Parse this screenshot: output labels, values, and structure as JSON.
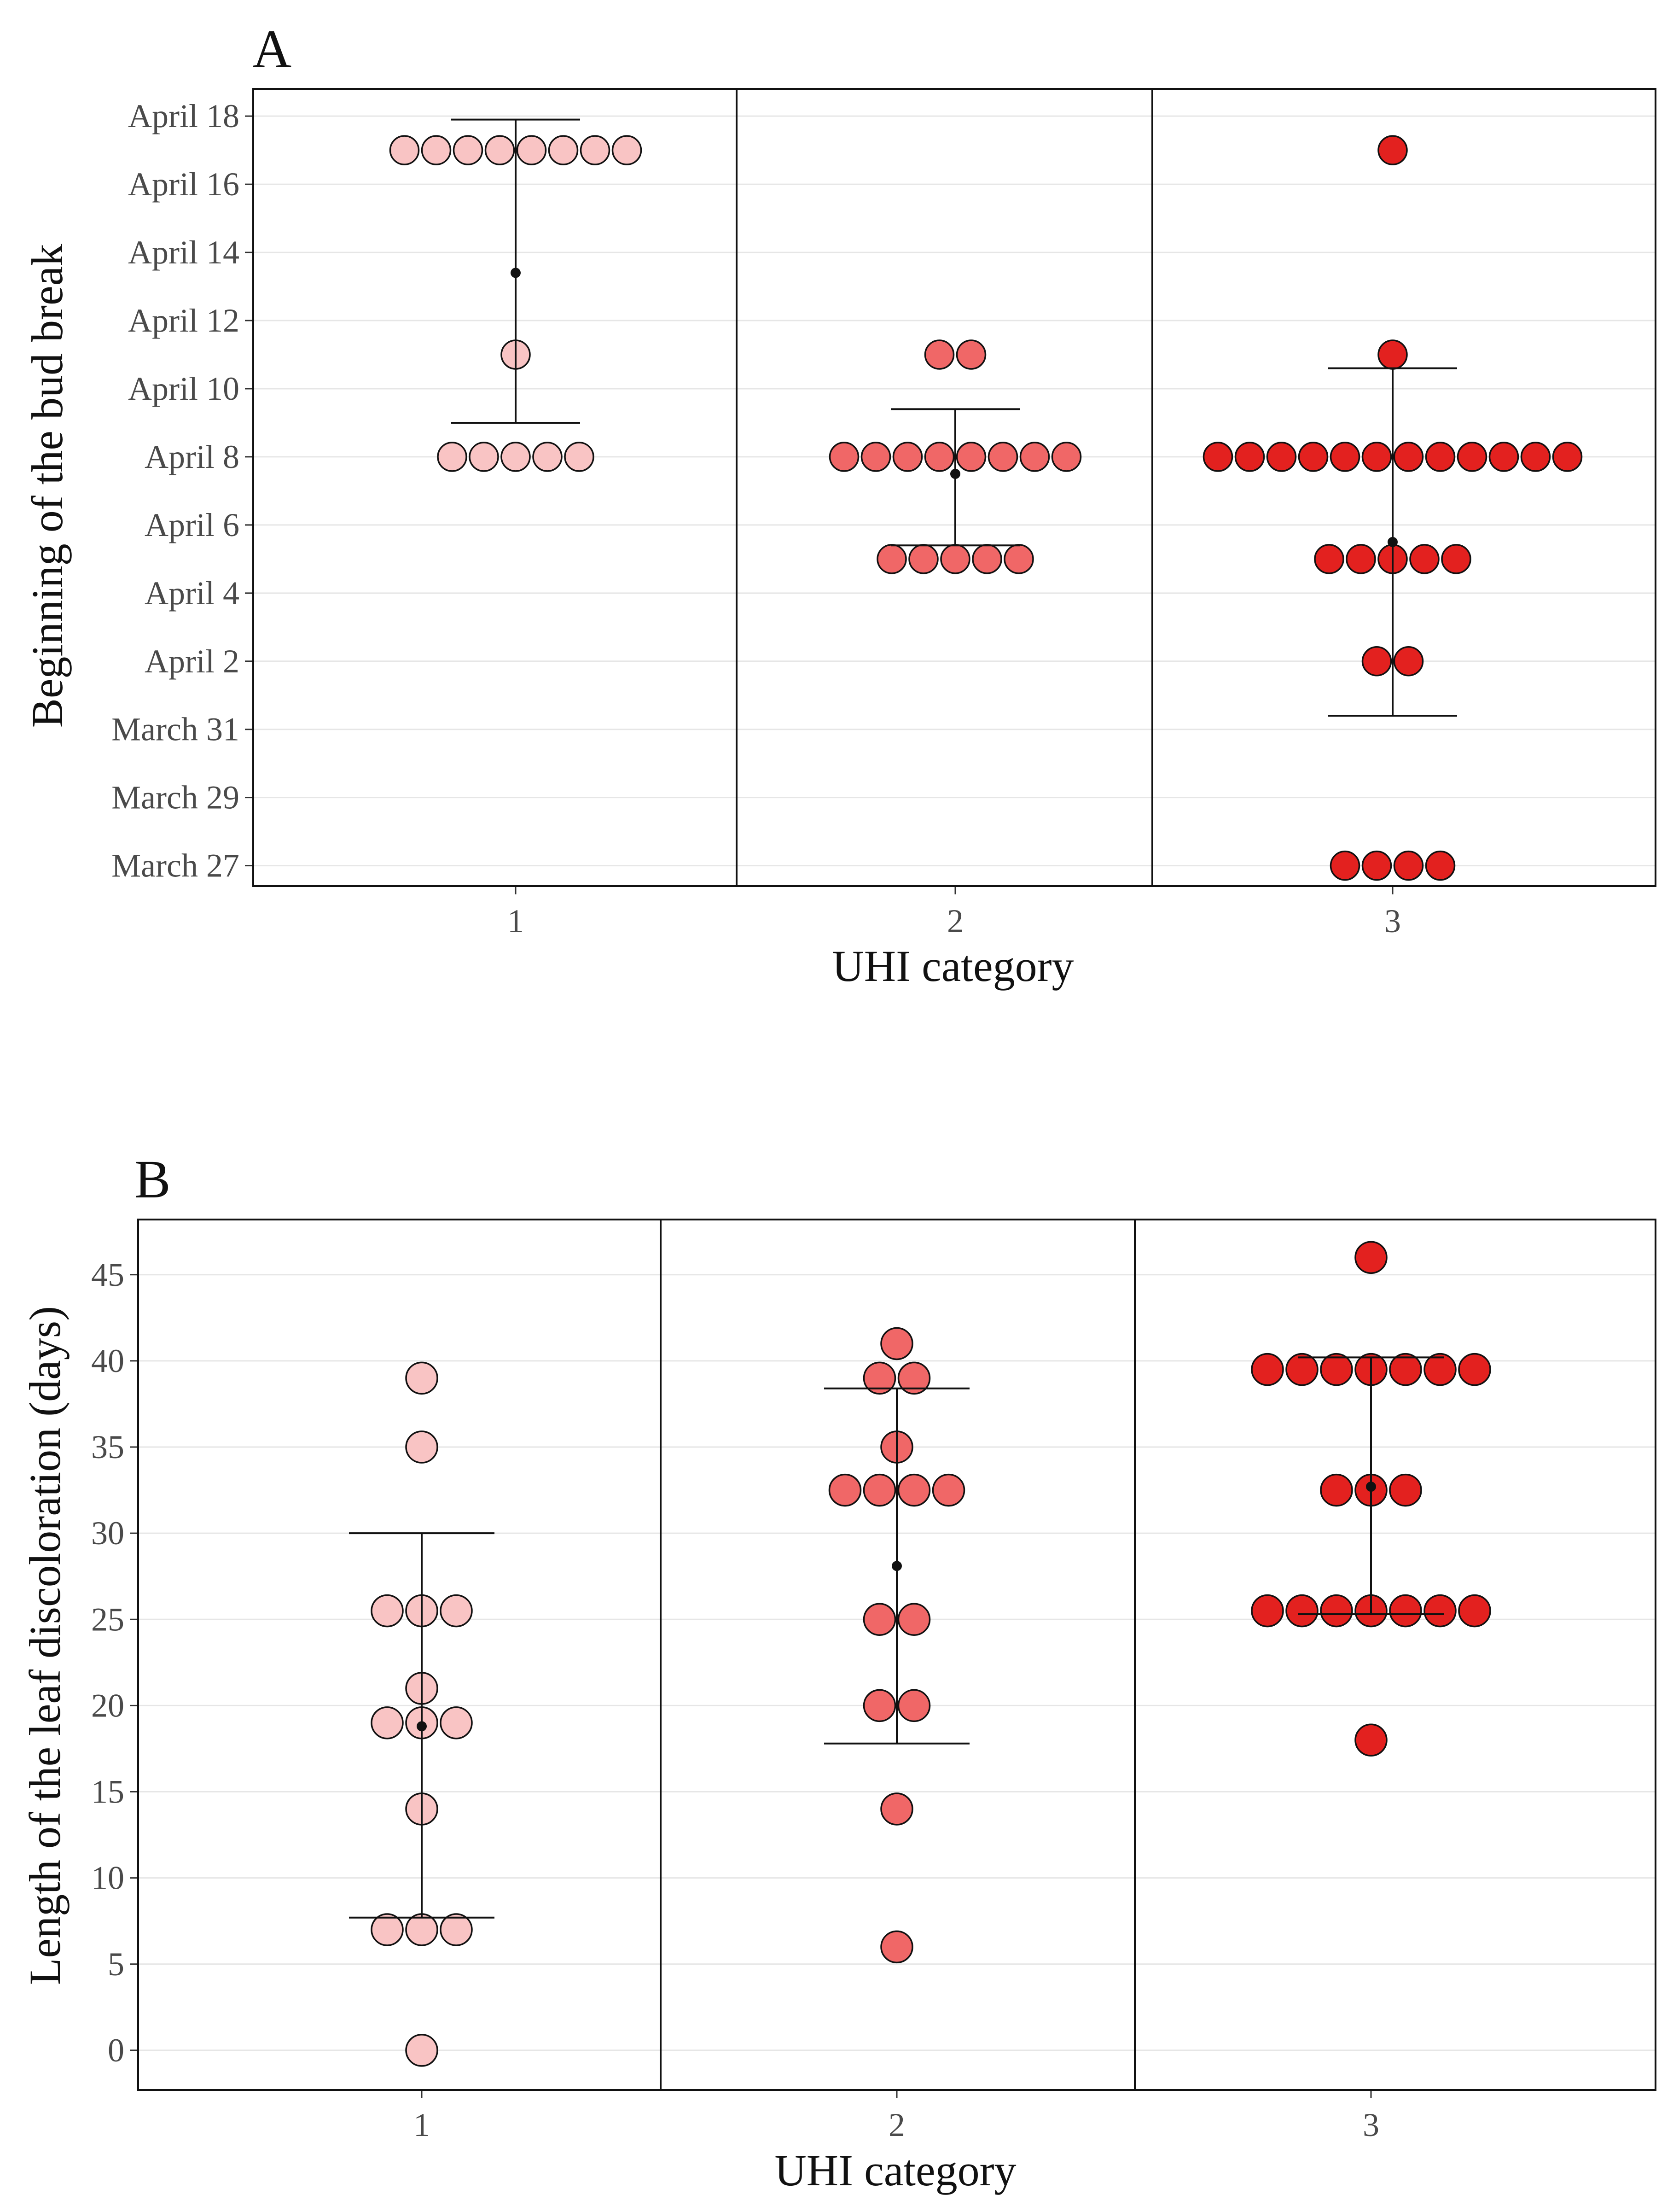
{
  "chart_data": [
    {
      "type": "scatter",
      "subtype": "dotplot_with_mean_sd",
      "panel_label": "A",
      "xlabel": "UHI category",
      "ylabel": "Beginning of the bud break",
      "categories": [
        "1",
        "2",
        "3"
      ],
      "ylim": [
        -0.6,
        22.8
      ],
      "yticks": [
        {
          "value": 0,
          "label": "March 27"
        },
        {
          "value": 2,
          "label": "March 29"
        },
        {
          "value": 4,
          "label": "March 31"
        },
        {
          "value": 6,
          "label": "April 2"
        },
        {
          "value": 8,
          "label": "April 4"
        },
        {
          "value": 10,
          "label": "April 6"
        },
        {
          "value": 12,
          "label": "April 8"
        },
        {
          "value": 14,
          "label": "April 10"
        },
        {
          "value": 16,
          "label": "April 12"
        },
        {
          "value": 18,
          "label": "April 14"
        },
        {
          "value": 20,
          "label": "April 16"
        },
        {
          "value": 22,
          "label": "April 18"
        }
      ],
      "series": [
        {
          "name": "1",
          "color": "#F9C4C4",
          "points": [
            {
              "y": 21,
              "n": 8
            },
            {
              "y": 15,
              "n": 1
            },
            {
              "y": 12,
              "n": 5
            }
          ],
          "mean": 17.4,
          "sd_low": 13.0,
          "sd_high": 21.9
        },
        {
          "name": "2",
          "color": "#F06767",
          "points": [
            {
              "y": 15,
              "n": 2
            },
            {
              "y": 12,
              "n": 8
            },
            {
              "y": 9,
              "n": 5
            }
          ],
          "mean": 11.5,
          "sd_low": 9.4,
          "sd_high": 13.4
        },
        {
          "name": "3",
          "color": "#E3211F",
          "points": [
            {
              "y": 21,
              "n": 1
            },
            {
              "y": 15,
              "n": 1
            },
            {
              "y": 12,
              "n": 12
            },
            {
              "y": 9,
              "n": 5
            },
            {
              "y": 6,
              "n": 2
            },
            {
              "y": 0,
              "n": 4
            }
          ],
          "mean": 9.5,
          "sd_low": 4.4,
          "sd_high": 14.6
        }
      ]
    },
    {
      "type": "scatter",
      "subtype": "dotplot_with_mean_sd",
      "panel_label": "B",
      "xlabel": "UHI category",
      "ylabel": "Length of the leaf discoloration (days)",
      "categories": [
        "1",
        "2",
        "3"
      ],
      "ylim": [
        -2.3,
        48.2
      ],
      "yticks": [
        {
          "value": 0,
          "label": "0"
        },
        {
          "value": 5,
          "label": "5"
        },
        {
          "value": 10,
          "label": "10"
        },
        {
          "value": 15,
          "label": "15"
        },
        {
          "value": 20,
          "label": "20"
        },
        {
          "value": 25,
          "label": "25"
        },
        {
          "value": 30,
          "label": "30"
        },
        {
          "value": 35,
          "label": "35"
        },
        {
          "value": 40,
          "label": "40"
        },
        {
          "value": 45,
          "label": "45"
        }
      ],
      "series": [
        {
          "name": "1",
          "color": "#F9C4C4",
          "points": [
            {
              "y": 39,
              "n": 1
            },
            {
              "y": 35,
              "n": 1
            },
            {
              "y": 25.5,
              "n": 3
            },
            {
              "y": 21,
              "n": 1
            },
            {
              "y": 19,
              "n": 3
            },
            {
              "y": 14,
              "n": 1
            },
            {
              "y": 7,
              "n": 3
            },
            {
              "y": 0,
              "n": 1
            }
          ],
          "mean": 18.8,
          "sd_low": 7.7,
          "sd_high": 30.0
        },
        {
          "name": "2",
          "color": "#F06767",
          "points": [
            {
              "y": 41,
              "n": 1
            },
            {
              "y": 39,
              "n": 2
            },
            {
              "y": 35,
              "n": 1
            },
            {
              "y": 32.5,
              "n": 4
            },
            {
              "y": 25,
              "n": 2
            },
            {
              "y": 20,
              "n": 2
            },
            {
              "y": 14,
              "n": 1
            },
            {
              "y": 6,
              "n": 1
            }
          ],
          "mean": 28.1,
          "sd_low": 17.8,
          "sd_high": 38.4
        },
        {
          "name": "3",
          "color": "#E3211F",
          "points": [
            {
              "y": 46,
              "n": 1
            },
            {
              "y": 39.5,
              "n": 7
            },
            {
              "y": 32.5,
              "n": 3
            },
            {
              "y": 25.5,
              "n": 7
            },
            {
              "y": 18,
              "n": 1
            }
          ],
          "mean": 32.7,
          "sd_low": 25.3,
          "sd_high": 40.2
        }
      ]
    }
  ]
}
